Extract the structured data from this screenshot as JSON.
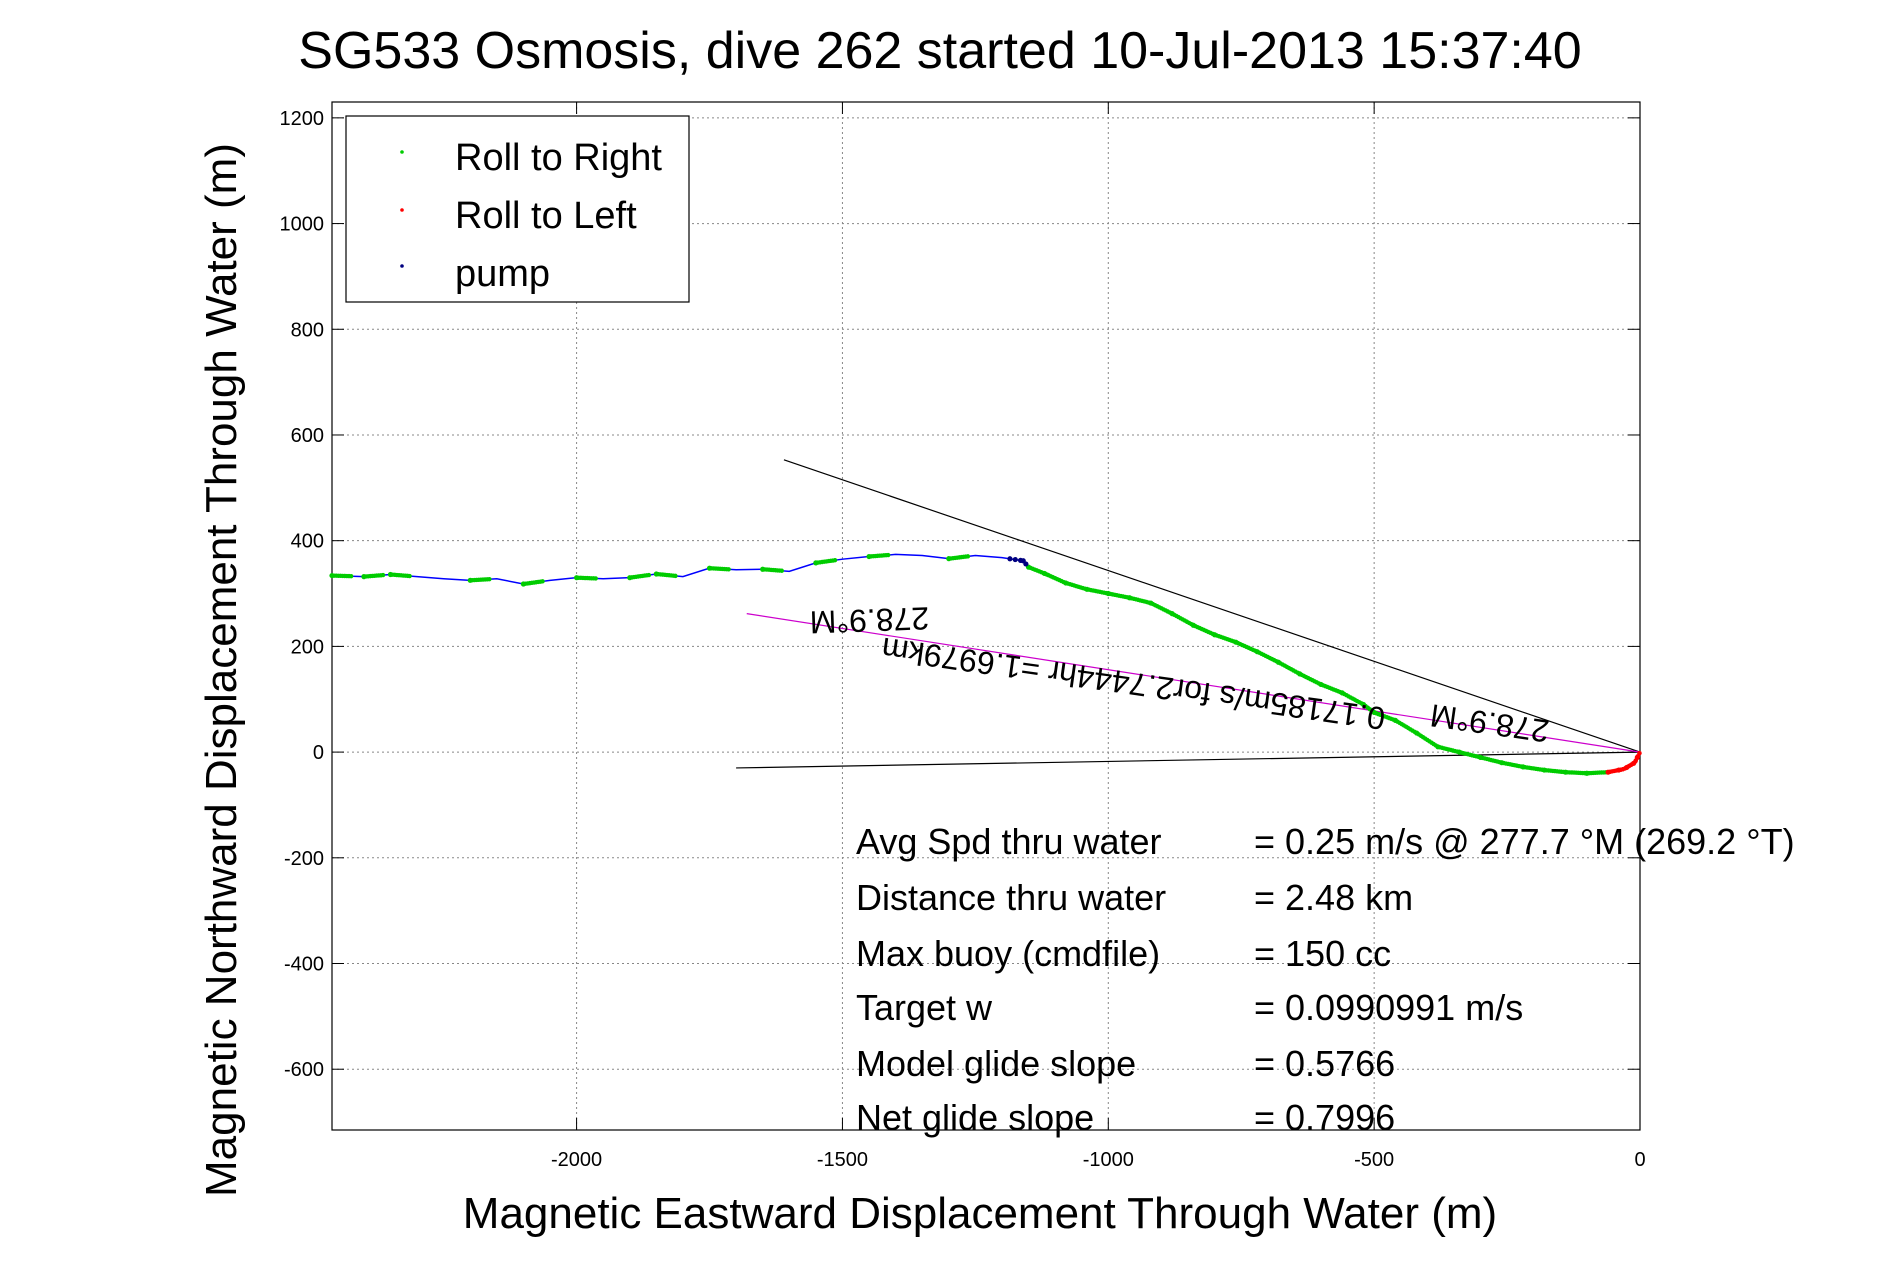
{
  "chart_data": {
    "type": "line",
    "title": "SG533 Osmosis, dive 262 started 10-Jul-2013 15:37:40",
    "xlabel": "Magnetic Eastward Displacement Through Water (m)",
    "ylabel": "Magnetic Northward Displacement Through Water (m)",
    "xlim": [
      -2460,
      0
    ],
    "ylim": [
      -715,
      1230
    ],
    "xticks": [
      -2000,
      -1500,
      -1000,
      -500,
      0
    ],
    "yticks": [
      -600,
      -400,
      -200,
      0,
      200,
      400,
      600,
      800,
      1000,
      1200
    ],
    "grid": true,
    "legend_position": "top-left",
    "legend": [
      "Roll to Right",
      "Roll to Left",
      "pump"
    ],
    "colors": {
      "roll_right": "#00cc00",
      "roll_left": "#ff0000",
      "pump": "#000080",
      "track": "#0000ff",
      "guide": "#000000",
      "heading": "#cc00cc"
    },
    "track": {
      "x": [
        -2460,
        -2400,
        -2350,
        -2300,
        -2250,
        -2200,
        -2150,
        -2100,
        -2050,
        -2000,
        -1950,
        -1900,
        -1850,
        -1800,
        -1750,
        -1700,
        -1650,
        -1600,
        -1550,
        -1500,
        -1450,
        -1400,
        -1350,
        -1300,
        -1250,
        -1200,
        -1160,
        -1150,
        -1120,
        -1080,
        -1040,
        -1000,
        -960,
        -920,
        -880,
        -840,
        -800,
        -760,
        -720,
        -680,
        -640,
        -600,
        -560,
        -520,
        -500,
        -460,
        -420,
        -380,
        -340,
        -300,
        -260,
        -220,
        -180,
        -140,
        -100,
        -60,
        -30,
        -10,
        0
      ],
      "y": [
        334,
        332,
        336,
        332,
        328,
        325,
        328,
        318,
        325,
        330,
        328,
        330,
        337,
        332,
        348,
        345,
        346,
        342,
        358,
        365,
        370,
        374,
        372,
        366,
        372,
        368,
        362,
        350,
        338,
        320,
        308,
        300,
        292,
        282,
        262,
        240,
        222,
        208,
        190,
        170,
        148,
        128,
        112,
        90,
        75,
        60,
        36,
        10,
        0,
        -10,
        -20,
        -28,
        -34,
        -38,
        -40,
        -38,
        -32,
        -20,
        0
      ]
    },
    "roll_right_x": [
      -2460,
      -2400,
      -2350,
      -2200,
      -2100,
      -2000,
      -1900,
      -1850,
      -1750,
      -1650,
      -1550,
      -1450,
      -1300,
      -1150,
      -1120,
      -1080,
      -1040,
      -1000,
      -960,
      -920,
      -880,
      -840,
      -800,
      -760,
      -720,
      -680,
      -640,
      -600,
      -560,
      -520,
      -500,
      -460,
      -420,
      -380,
      -340,
      -300,
      -260,
      -220,
      -180,
      -140,
      -100
    ],
    "roll_left_x": [
      -60,
      -40,
      -25,
      -12,
      -5
    ],
    "pump_x": [
      -1185,
      -1175,
      -1165,
      -1160,
      -1155
    ],
    "lines": [
      {
        "kind": "guide",
        "x": [
          -1610,
          0
        ],
        "y": [
          553,
          0
        ]
      },
      {
        "kind": "guide",
        "x": [
          -1700,
          0
        ],
        "y": [
          -30,
          0
        ]
      },
      {
        "kind": "heading",
        "x": [
          -1680,
          0
        ],
        "y": [
          262,
          0
        ]
      }
    ],
    "annotations": [
      {
        "text": "278.9°M",
        "x": -1450,
        "y": 270,
        "rotate": 178
      },
      {
        "text": "0.1718​5m/s for2.7444hr =1.6979km",
        "x": -950,
        "y": 150,
        "rotate": 188
      },
      {
        "text": "278.9°M",
        "x": -280,
        "y": 75,
        "rotate": 188
      }
    ],
    "stats": [
      {
        "label": "Avg Spd thru water",
        "value": "=  0.25 m/s @ 277.7 °M (269.2 °T)"
      },
      {
        "label": "Distance thru water",
        "value": "=  2.48 km"
      },
      {
        "label": "Max buoy (cmdfile)",
        "value": "= 150 cc"
      },
      {
        "label": "Target w",
        "value": "= 0.0990991 m/s"
      },
      {
        "label": "Model glide slope",
        "value": "= 0.5766"
      },
      {
        "label": "Net glide slope",
        "value": "= 0.7996"
      }
    ]
  }
}
